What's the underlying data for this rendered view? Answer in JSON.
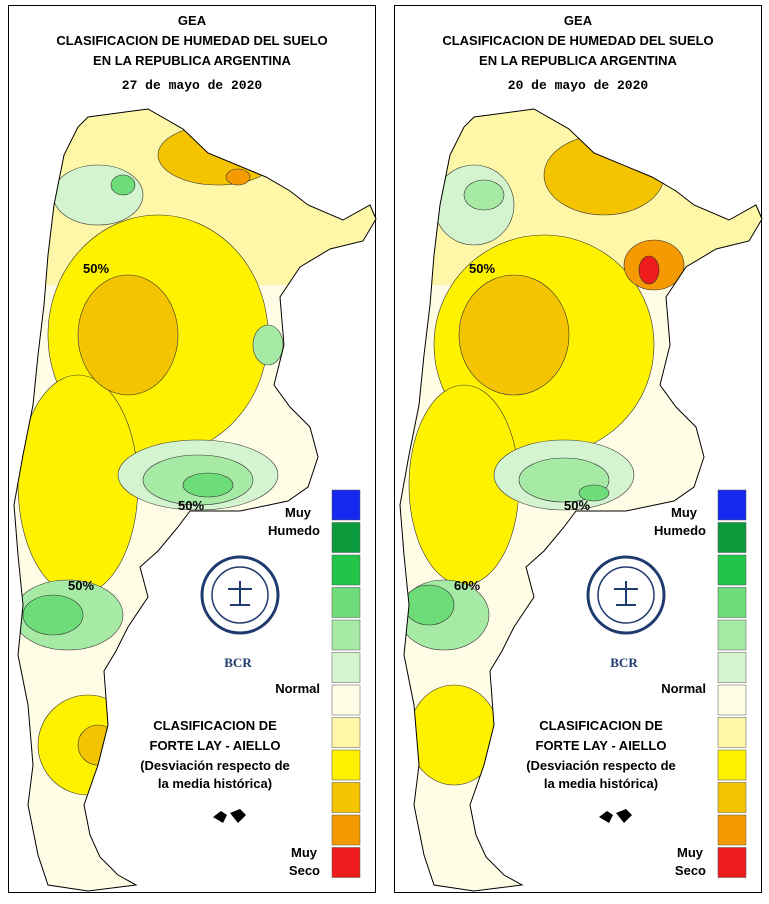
{
  "panels": [
    {
      "header": {
        "line1": "GEA",
        "line2": "CLASIFICACION DE HUMEDAD DEL SUELO",
        "line3": "EN LA REPUBLICA ARGENTINA",
        "date": "27 de mayo de 2020"
      },
      "contour_labels": [
        "50%",
        "50%",
        "50%"
      ],
      "legend": {
        "top": [
          "Muy",
          "Humedo"
        ],
        "middle": "Normal",
        "bottom": [
          "Muy",
          "Seco"
        ]
      },
      "logo": "BCR",
      "classification": {
        "title": [
          "CLASIFICACION DE",
          "FORTE LAY - AIELLO"
        ],
        "note": [
          "(Desviación respecto de",
          "la media histórica)"
        ]
      }
    },
    {
      "header": {
        "line1": "GEA",
        "line2": "CLASIFICACION DE HUMEDAD DEL SUELO",
        "line3": "EN LA REPUBLICA ARGENTINA",
        "date": "20 de mayo de 2020"
      },
      "contour_labels": [
        "50%",
        "50%",
        "60%"
      ],
      "legend": {
        "top": [
          "Muy",
          "Humedo"
        ],
        "middle": "Normal",
        "bottom": [
          "Muy",
          "Seco"
        ]
      },
      "logo": "BCR",
      "classification": {
        "title": [
          "CLASIFICACION DE",
          "FORTE LAY - AIELLO"
        ],
        "note": [
          "(Desviación respecto de",
          "la media histórica)"
        ]
      }
    }
  ],
  "legend_colors": [
    "#1428f0",
    "#0a9a3c",
    "#22c44a",
    "#6edc78",
    "#a6eaa6",
    "#d4f4d0",
    "#fffde6",
    "#fff7a8",
    "#fff200",
    "#f5c400",
    "#f59a00",
    "#ee1c1c"
  ]
}
